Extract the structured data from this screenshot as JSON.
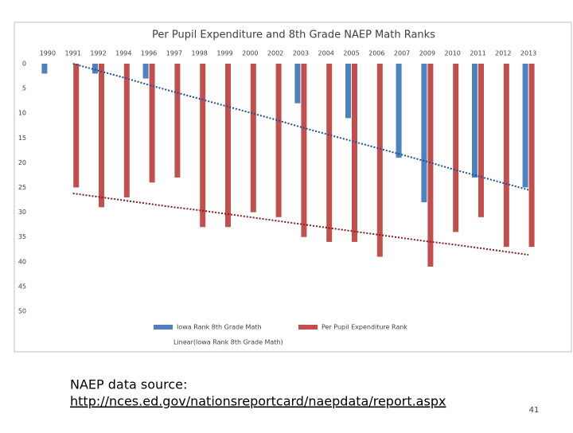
{
  "chart_data": {
    "type": "bar",
    "title": "Per Pupil Expenditure and 8th Grade NAEP Math Ranks",
    "categories": [
      "1990",
      "1991",
      "1992",
      "1994",
      "1996",
      "1997",
      "1998",
      "1999",
      "2000",
      "2002",
      "2003",
      "2004",
      "2005",
      "2006",
      "2007",
      "2009",
      "2010",
      "2011",
      "2012",
      "2013"
    ],
    "series": [
      {
        "name": "Iowa Rank 8th Grade Math",
        "color": "#4f81bd",
        "values": [
          2,
          null,
          2,
          null,
          3,
          null,
          null,
          null,
          null,
          null,
          8,
          null,
          11,
          null,
          19,
          28,
          null,
          23,
          null,
          25
        ]
      },
      {
        "name": "Per Pupil Expenditure Rank",
        "color": "#c0504d",
        "values": [
          null,
          25,
          29,
          27,
          24,
          23,
          33,
          33,
          30,
          31,
          35,
          36,
          36,
          39,
          null,
          41,
          34,
          31,
          37,
          37
        ]
      }
    ],
    "trendlines": [
      {
        "name": "Linear(Iowa Rank 8th Grade Math)",
        "color": "#1f4e9b",
        "values": [
          null,
          0,
          1.4,
          2.8,
          4.3,
          5.7,
          7.1,
          8.5,
          9.9,
          11.3,
          12.8,
          14.2,
          15.6,
          17,
          18.4,
          19.8,
          21.3,
          22.7,
          24.1,
          25.5
        ]
      },
      {
        "color": "#8b1a1a",
        "values": [
          null,
          26.2,
          26.9,
          27.6,
          28.3,
          29,
          29.6,
          30.3,
          31,
          31.7,
          32.4,
          33.1,
          33.8,
          34.5,
          35.2,
          35.9,
          36.5,
          37.2,
          37.9,
          38.6
        ]
      }
    ],
    "ylim": [
      0,
      50
    ],
    "yticks": [
      0,
      5,
      10,
      15,
      20,
      25,
      30,
      35,
      40,
      45,
      50
    ],
    "y_reversed": true,
    "grid": false
  },
  "slide": {
    "source_label": "NAEP data source:",
    "source_url": "http://nces.ed.gov/nationsreportcard/naepdata/report.aspx",
    "page_number": "41"
  }
}
